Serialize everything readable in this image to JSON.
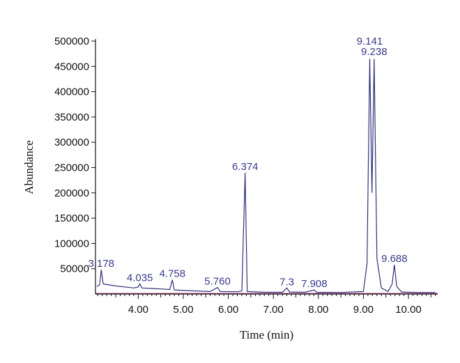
{
  "colors": {
    "trace": "#2f2f7a",
    "label": "#3a3a8c",
    "axis": "#111111",
    "baseline": "#c05090"
  },
  "chart_data": {
    "type": "line",
    "title": "",
    "xlabel": "Time (min)",
    "ylabel": "Abundance",
    "xlim": [
      3.05,
      10.65
    ],
    "ylim": [
      0,
      500000
    ],
    "xticks": [
      4.0,
      5.0,
      6.0,
      7.0,
      8.0,
      9.0,
      10.0
    ],
    "xtick_labels": [
      "4.00",
      "5.00",
      "6.00",
      "7.00",
      "8.00",
      "9.00",
      "10.00"
    ],
    "yticks": [
      50000,
      100000,
      150000,
      200000,
      250000,
      300000,
      350000,
      400000,
      450000,
      500000
    ],
    "ytick_labels": [
      "50000",
      "100000",
      "150000",
      "200000",
      "250000",
      "300000",
      "350000",
      "400000",
      "450000",
      "500000"
    ],
    "grid": false,
    "series": [
      {
        "values": [
          [
            3.08,
            15000
          ],
          [
            3.14,
            18000
          ],
          [
            3.178,
            48000
          ],
          [
            3.22,
            20000
          ],
          [
            3.35,
            18000
          ],
          [
            3.5,
            16000
          ],
          [
            3.7,
            14000
          ],
          [
            3.9,
            12000
          ],
          [
            4.0,
            14000
          ],
          [
            4.035,
            20000
          ],
          [
            4.08,
            12000
          ],
          [
            4.3,
            11000
          ],
          [
            4.5,
            10000
          ],
          [
            4.7,
            9000
          ],
          [
            4.758,
            28000
          ],
          [
            4.8,
            8000
          ],
          [
            5.0,
            7000
          ],
          [
            5.3,
            6000
          ],
          [
            5.6,
            5000
          ],
          [
            5.76,
            13000
          ],
          [
            5.82,
            5000
          ],
          [
            6.2,
            4500
          ],
          [
            6.3,
            6000
          ],
          [
            6.374,
            240000
          ],
          [
            6.42,
            5000
          ],
          [
            6.8,
            3500
          ],
          [
            7.2,
            3500
          ],
          [
            7.3,
            12000
          ],
          [
            7.36,
            4000
          ],
          [
            7.7,
            3500
          ],
          [
            7.908,
            8000
          ],
          [
            7.96,
            3500
          ],
          [
            8.5,
            3000
          ],
          [
            9.0,
            5000
          ],
          [
            9.08,
            60000
          ],
          [
            9.141,
            465000
          ],
          [
            9.19,
            200000
          ],
          [
            9.238,
            465000
          ],
          [
            9.3,
            70000
          ],
          [
            9.4,
            12000
          ],
          [
            9.55,
            5000
          ],
          [
            9.64,
            20000
          ],
          [
            9.688,
            58000
          ],
          [
            9.74,
            15000
          ],
          [
            9.85,
            4000
          ],
          [
            10.2,
            3000
          ],
          [
            10.6,
            3000
          ]
        ]
      }
    ],
    "annotations": [
      {
        "text": "3.178",
        "x": 3.178,
        "y": 48000
      },
      {
        "text": "4.035",
        "x": 4.035,
        "y": 20000
      },
      {
        "text": "4.758",
        "x": 4.758,
        "y": 28000
      },
      {
        "text": "5.760",
        "x": 5.76,
        "y": 13000
      },
      {
        "text": "6.374",
        "x": 6.374,
        "y": 240000
      },
      {
        "text": "7.3",
        "x": 7.3,
        "y": 12000
      },
      {
        "text": "7.908",
        "x": 7.908,
        "y": 8000
      },
      {
        "text": "9.141",
        "x": 9.141,
        "y": 465000
      },
      {
        "text": "9.238",
        "x": 9.238,
        "y": 465000
      },
      {
        "text": "9.688",
        "x": 9.688,
        "y": 58000
      }
    ]
  }
}
